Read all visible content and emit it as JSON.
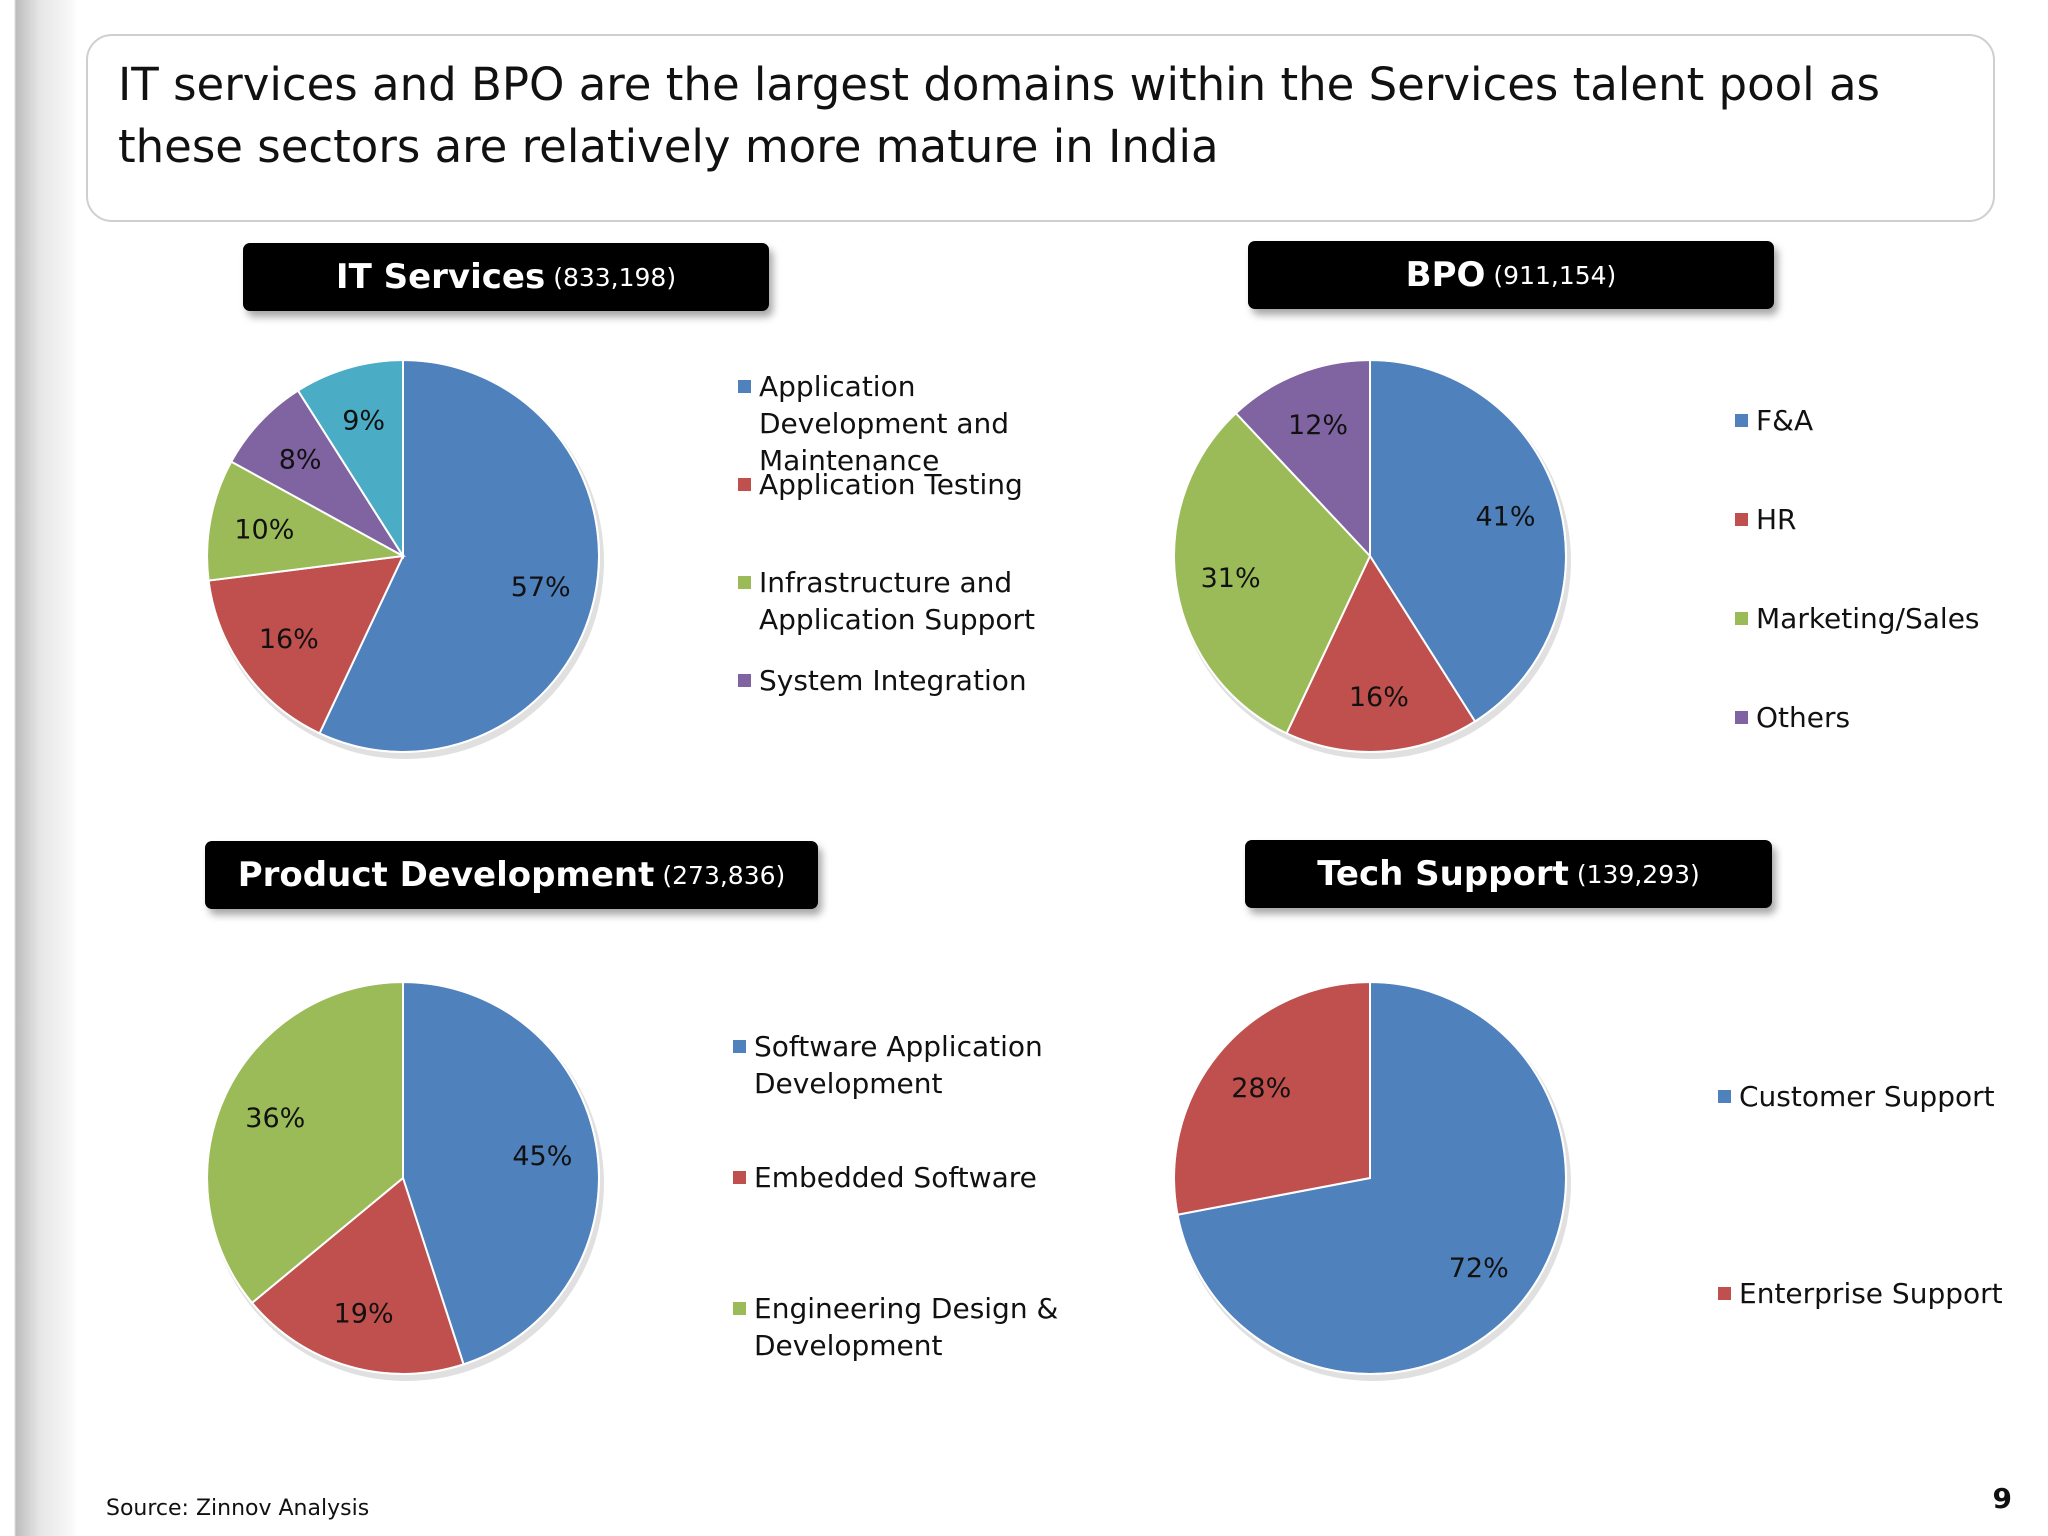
{
  "slide": {
    "title": "IT services and BPO are the largest domains within the Services talent pool as these sectors are relatively more mature in India",
    "source": "Source: Zinnov Analysis",
    "page_number": "9"
  },
  "colors": {
    "blue": "#4F81BD",
    "red": "#C0504D",
    "green": "#9BBB59",
    "purple": "#8064A2",
    "cyan": "#4BACC6"
  },
  "chart_data": [
    {
      "type": "pie",
      "title": "IT Services",
      "count": "(833,198)",
      "categories": [
        "Application Development and Maintenance",
        "Application Testing",
        "Infrastructure and Application Support",
        "System Integration",
        ""
      ],
      "values": [
        57,
        16,
        10,
        8,
        9
      ],
      "labels": [
        "57%",
        "16%",
        "10%",
        "8%",
        "9%"
      ],
      "colors": [
        "#4F81BD",
        "#C0504D",
        "#9BBB59",
        "#8064A2",
        "#4BACC6"
      ],
      "legend": [
        "Application Development and Maintenance",
        "Application Testing",
        "Infrastructure and Application Support",
        "System Integration"
      ],
      "legend_placement": "right"
    },
    {
      "type": "pie",
      "title": "BPO",
      "count": "(911,154)",
      "categories": [
        "F&A",
        "HR",
        "Marketing/Sales",
        "Others"
      ],
      "values": [
        41,
        16,
        31,
        12
      ],
      "labels": [
        "41%",
        "16%",
        "31%",
        "12%"
      ],
      "colors": [
        "#4F81BD",
        "#C0504D",
        "#9BBB59",
        "#8064A2"
      ],
      "legend": [
        "F&A",
        "HR",
        "Marketing/Sales",
        "Others"
      ],
      "legend_placement": "right"
    },
    {
      "type": "pie",
      "title": "Product Development",
      "count": "(273,836)",
      "categories": [
        "Software Application Development",
        "Embedded Software",
        "Engineering Design & Development"
      ],
      "values": [
        45,
        19,
        36
      ],
      "labels": [
        "45%",
        "19%",
        "36%"
      ],
      "colors": [
        "#4F81BD",
        "#C0504D",
        "#9BBB59"
      ],
      "legend": [
        "Software Application Development",
        "Embedded Software",
        "Engineering Design & Development"
      ],
      "legend_placement": "right"
    },
    {
      "type": "pie",
      "title": "Tech Support",
      "count": "(139,293)",
      "categories": [
        "Customer Support",
        "Enterprise Support"
      ],
      "values": [
        72,
        28
      ],
      "labels": [
        "72%",
        "28%"
      ],
      "colors": [
        "#4F81BD",
        "#C0504D"
      ],
      "legend": [
        "Customer Support",
        "Enterprise Support"
      ],
      "legend_placement": "right"
    }
  ]
}
